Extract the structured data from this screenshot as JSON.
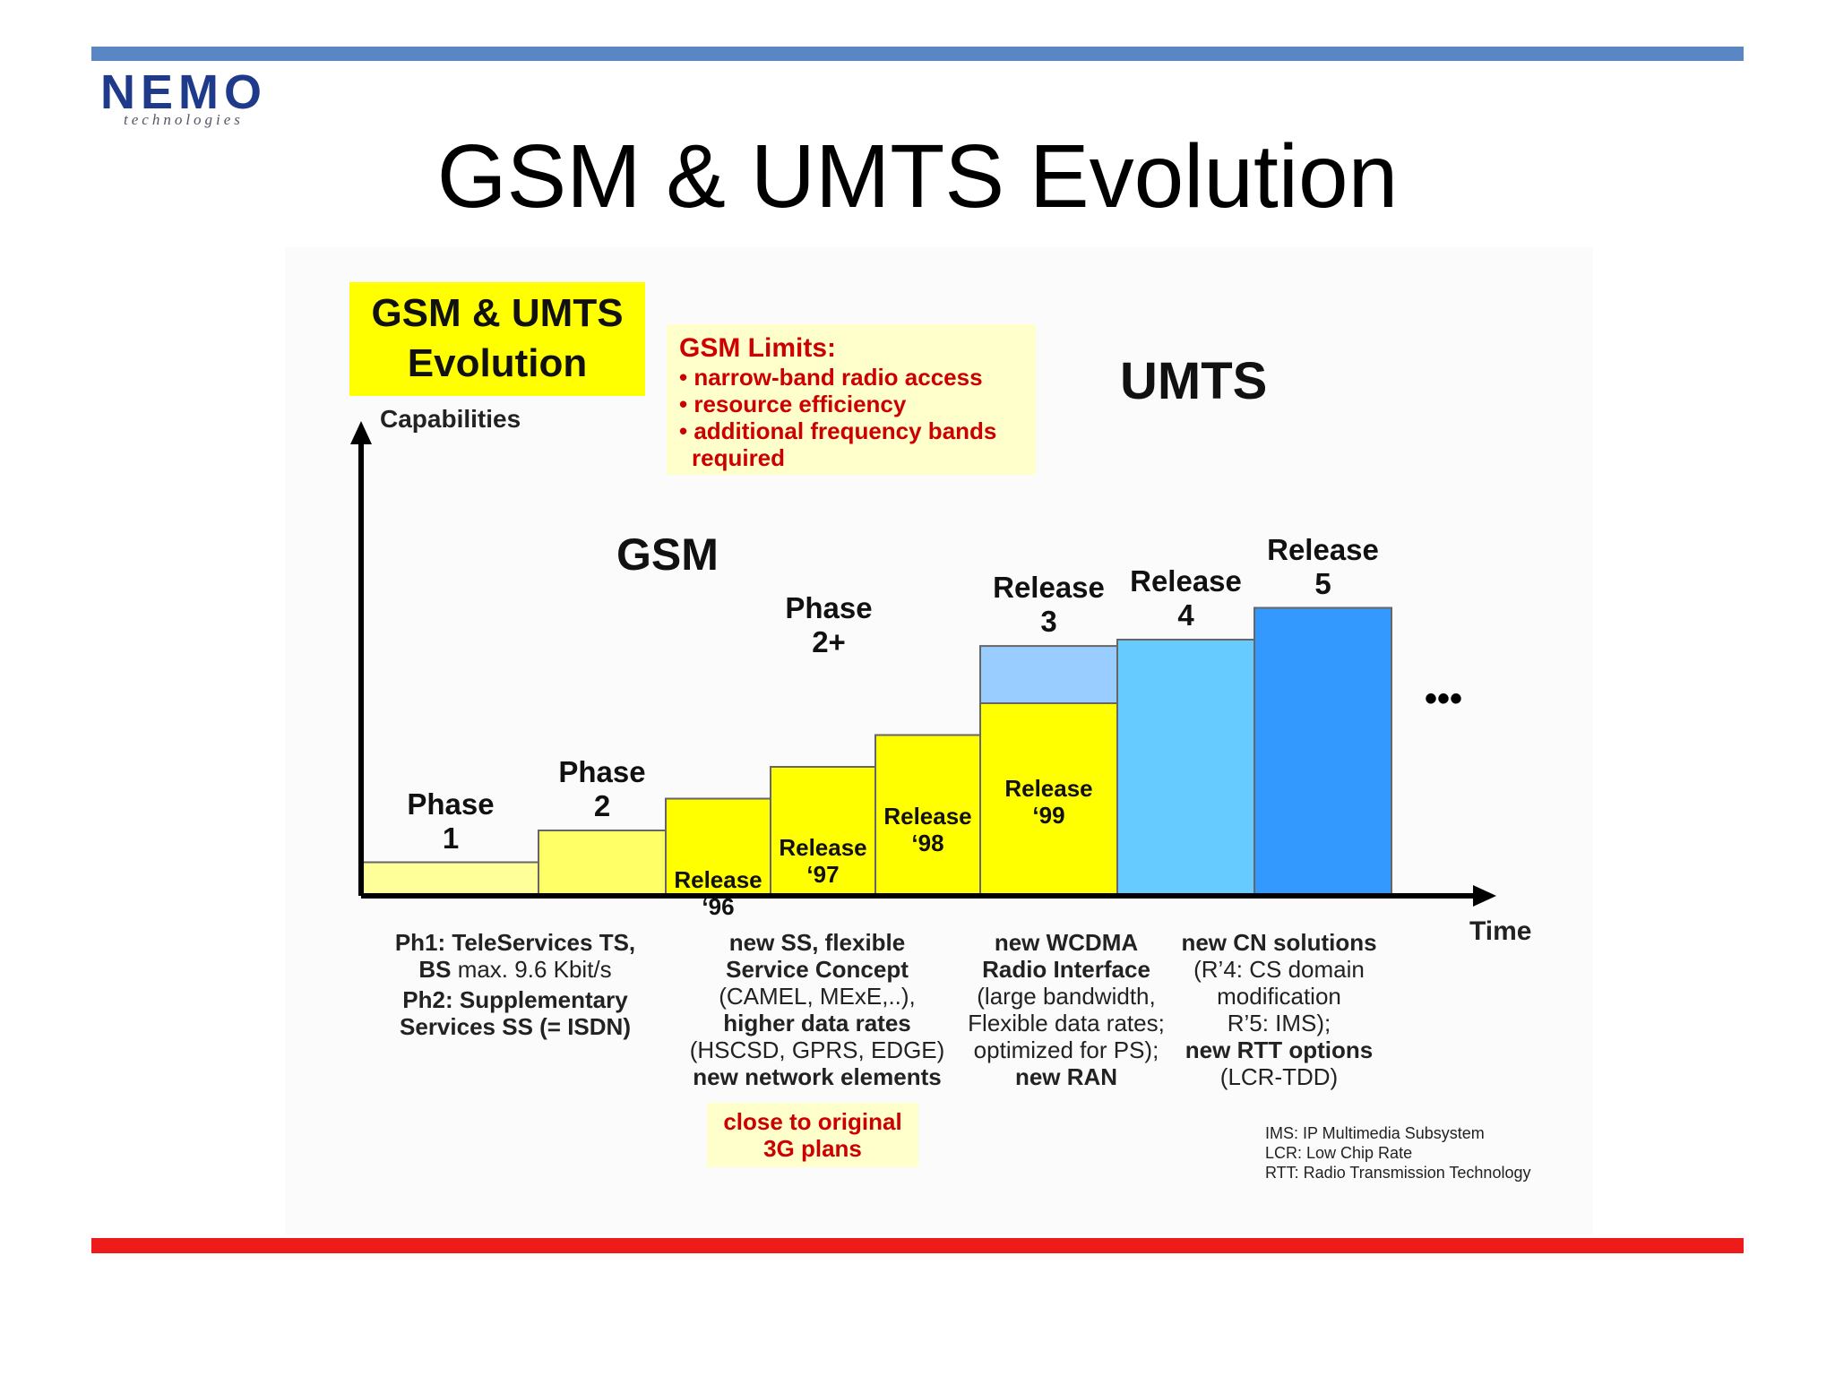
{
  "logo": {
    "brand": "NEMO",
    "tagline": "technologies"
  },
  "title": "GSM & UMTS Evolution",
  "colors": {
    "top_bar": "#5a86c4",
    "bottom_bar": "#ee1b1b",
    "highlight_yellow": "#ffff00",
    "note_yellow": "#ffffcc",
    "limits_red": "#cc0000"
  },
  "diagram": {
    "box_title_line1": "GSM & UMTS",
    "box_title_line2": "Evolution",
    "y_axis_label": "Capabilities",
    "x_axis_label": "Time",
    "gsm_label": "GSM",
    "umts_label": "UMTS",
    "continuation": "•••",
    "limits": {
      "title": "GSM Limits:",
      "items": [
        "• narrow-band radio access",
        "• resource efficiency",
        "• additional frequency bands",
        "required"
      ]
    },
    "steps": [
      {
        "label": "Phase\n1",
        "label_pos": "above",
        "color": "#ffff99",
        "level": 1
      },
      {
        "label": "Phase\n2",
        "label_pos": "above",
        "color": "#ffff66",
        "level": 2
      },
      {
        "label": "Release\n‘96",
        "label_pos": "inside",
        "color": "#ffff00",
        "level": 3
      },
      {
        "label": "Release\n‘97",
        "label_pos": "inside",
        "color": "#ffff00",
        "level": 4
      },
      {
        "label": "Release\n‘98",
        "label_pos": "inside",
        "color": "#ffff00",
        "level": 5
      },
      {
        "label": "Release\n‘99",
        "label_pos": "inside",
        "color": "#ffff00",
        "level": 6,
        "cap_color": "#99ccff",
        "cap_label": "Release\n3"
      },
      {
        "label": "Release\n4",
        "label_pos": "above",
        "color": "#66ccff",
        "level": 8
      },
      {
        "label": "Release\n5",
        "label_pos": "above",
        "color": "#3399ff",
        "level": 9
      }
    ],
    "phase2plus_label": "Phase\n2+",
    "notes": {
      "col1": {
        "line1": "Ph1: TeleServices TS,",
        "line2_bold": "BS",
        "line2_rest": " max. 9.6 Kbit/s",
        "line3": "Ph2: Supplementary",
        "line4": "Services SS (= ISDN)"
      },
      "col2": {
        "line1": "new SS, flexible",
        "line2": "Service Concept",
        "line3": "(CAMEL, MExE,..),",
        "line4": "higher data rates",
        "line5": "(HSCSD, GPRS, EDGE)",
        "line6": "new network elements"
      },
      "col3": {
        "line1": "new WCDMA",
        "line2": "Radio Interface",
        "line3": "(large bandwidth,",
        "line4": "Flexible data rates;",
        "line5": "optimized for PS);",
        "line6": "new RAN"
      },
      "col4": {
        "line1": "new CN solutions",
        "line2": "(R’4: CS domain",
        "line3": "modification",
        "line4": "R’5: IMS);",
        "line5": "new RTT options",
        "line6": "(LCR-TDD)"
      }
    },
    "plans_note": {
      "line1": "close to original",
      "line2": "3G plans"
    },
    "abbreviations": [
      "IMS: IP Multimedia Subsystem",
      "LCR: Low Chip Rate",
      "RTT: Radio Transmission Technology"
    ]
  }
}
